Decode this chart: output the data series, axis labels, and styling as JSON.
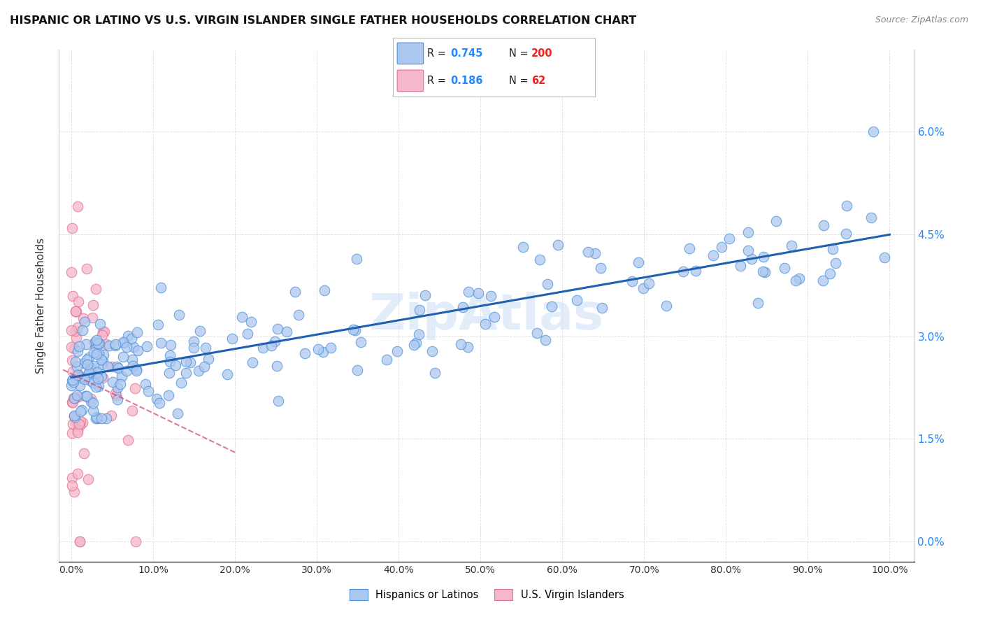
{
  "title": "HISPANIC OR LATINO VS U.S. VIRGIN ISLANDER SINGLE FATHER HOUSEHOLDS CORRELATION CHART",
  "source": "Source: ZipAtlas.com",
  "ylabel": "Single Father Households",
  "blue_R": 0.745,
  "blue_N": 200,
  "pink_R": 0.186,
  "pink_N": 62,
  "blue_color": "#adc8f0",
  "blue_edge_color": "#4a90d9",
  "blue_line_color": "#2060b0",
  "pink_color": "#f5b8ca",
  "pink_edge_color": "#e07090",
  "pink_line_color": "#d04070",
  "legend_R_color": "#2288ff",
  "legend_N_color": "#ee2222",
  "right_axis_color": "#2288ff",
  "watermark_color": "#c8ddf5",
  "background_color": "#ffffff",
  "grid_color": "#dddddd",
  "ytick_vals": [
    0.0,
    1.5,
    3.0,
    4.5,
    6.0
  ],
  "xtick_vals": [
    0,
    10,
    20,
    30,
    40,
    50,
    60,
    70,
    80,
    90,
    100
  ],
  "xlim": [
    -1.5,
    103
  ],
  "ylim": [
    -0.3,
    7.2
  ]
}
